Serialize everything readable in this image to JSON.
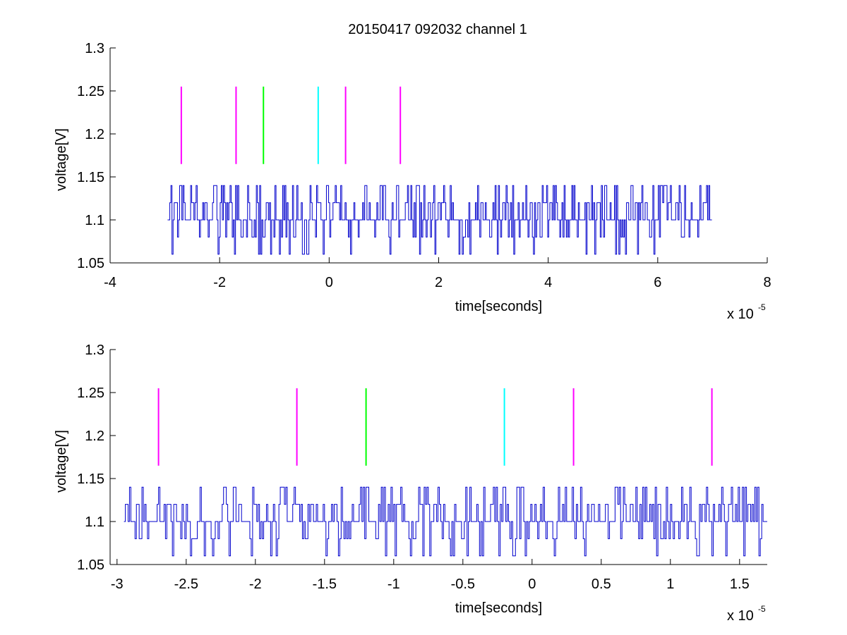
{
  "figure": {
    "title": "20150417 092032 channel 1",
    "background": "#ffffff"
  },
  "chart_data": [
    {
      "type": "line",
      "xlabel": "time[seconds]",
      "ylabel": "voltage[V]",
      "x_multiplier_label": "x 10",
      "x_multiplier_exponent": "-5",
      "xlim": [
        -4,
        8
      ],
      "ylim": [
        1.05,
        1.3
      ],
      "x_ticks": [
        -4,
        -2,
        0,
        2,
        4,
        6,
        8
      ],
      "x_tick_labels": [
        "-4",
        "-2",
        "0",
        "2",
        "4",
        "6",
        "8"
      ],
      "y_ticks": [
        1.05,
        1.1,
        1.15,
        1.2,
        1.25,
        1.3
      ],
      "y_tick_labels": [
        "1.05",
        "1.1",
        "1.15",
        "1.2",
        "1.25",
        "1.3"
      ],
      "grid": false,
      "signal": {
        "color": "#0000cc",
        "x_start": -2.95,
        "x_end": 7.0,
        "step": 0.02,
        "levels": [
          1.06,
          1.08,
          1.1,
          1.12,
          1.14
        ],
        "baseline": 1.1,
        "segments": [
          {
            "x_from": -2.95,
            "x_to": 7.0,
            "min": 1.06,
            "max": 1.14
          }
        ]
      },
      "markers": [
        {
          "x": -2.7,
          "y_from": 1.165,
          "y_to": 1.255,
          "color": "#ff00ff"
        },
        {
          "x": -1.7,
          "y_from": 1.165,
          "y_to": 1.255,
          "color": "#ff00ff"
        },
        {
          "x": -1.2,
          "y_from": 1.165,
          "y_to": 1.255,
          "color": "#00ff00"
        },
        {
          "x": -0.2,
          "y_from": 1.165,
          "y_to": 1.255,
          "color": "#00ffff"
        },
        {
          "x": 0.3,
          "y_from": 1.165,
          "y_to": 1.255,
          "color": "#ff00ff"
        },
        {
          "x": 1.3,
          "y_from": 1.165,
          "y_to": 1.255,
          "color": "#ff00ff"
        }
      ]
    },
    {
      "type": "line",
      "xlabel": "time[seconds]",
      "ylabel": "voltage[V]",
      "x_multiplier_label": "x 10",
      "x_multiplier_exponent": "-5",
      "xlim": [
        -3.05,
        1.7
      ],
      "ylim": [
        1.05,
        1.3
      ],
      "x_ticks": [
        -3,
        -2.5,
        -2,
        -1.5,
        -1,
        -0.5,
        0,
        0.5,
        1,
        1.5
      ],
      "x_tick_labels": [
        "-3",
        "-2.5",
        "-2",
        "-1.5",
        "-1",
        "-0.5",
        "0",
        "0.5",
        "1",
        "1.5"
      ],
      "y_ticks": [
        1.05,
        1.1,
        1.15,
        1.2,
        1.25,
        1.3
      ],
      "y_tick_labels": [
        "1.05",
        "1.1",
        "1.15",
        "1.2",
        "1.25",
        "1.3"
      ],
      "grid": false,
      "signal": {
        "color": "#0000cc",
        "x_start": -2.95,
        "x_end": 1.7,
        "step": 0.01,
        "levels": [
          1.06,
          1.08,
          1.1,
          1.12,
          1.14
        ],
        "baseline": 1.1,
        "segments": [
          {
            "x_from": -2.95,
            "x_to": 1.7,
            "min": 1.06,
            "max": 1.14
          }
        ]
      },
      "markers": [
        {
          "x": -2.7,
          "y_from": 1.165,
          "y_to": 1.255,
          "color": "#ff00ff"
        },
        {
          "x": -1.7,
          "y_from": 1.165,
          "y_to": 1.255,
          "color": "#ff00ff"
        },
        {
          "x": -1.2,
          "y_from": 1.165,
          "y_to": 1.255,
          "color": "#00ff00"
        },
        {
          "x": -0.2,
          "y_from": 1.165,
          "y_to": 1.255,
          "color": "#00ffff"
        },
        {
          "x": 0.3,
          "y_from": 1.165,
          "y_to": 1.255,
          "color": "#ff00ff"
        },
        {
          "x": 1.3,
          "y_from": 1.165,
          "y_to": 1.255,
          "color": "#ff00ff"
        }
      ]
    }
  ]
}
